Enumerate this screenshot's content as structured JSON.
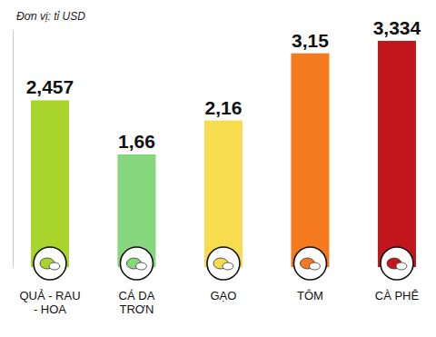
{
  "chart_data": {
    "type": "bar",
    "title": "Đơn vị: tỉ USD",
    "categories": [
      "QUẢ - RAU - HOA",
      "CÁ DA TRƠN",
      "GẠO",
      "TÔM",
      "CÀ PHÊ"
    ],
    "values": [
      2.457,
      1.66,
      2.16,
      3.15,
      3.334
    ],
    "value_labels": [
      "2,457",
      "1,66",
      "2,16",
      "3,15",
      "3,334"
    ],
    "colors": [
      "#a8d42c",
      "#86d67e",
      "#f6dc4e",
      "#f57a1e",
      "#c1161c"
    ],
    "ylim": [
      0,
      3.5
    ],
    "data_labels": true,
    "tick_labels": "x"
  }
}
